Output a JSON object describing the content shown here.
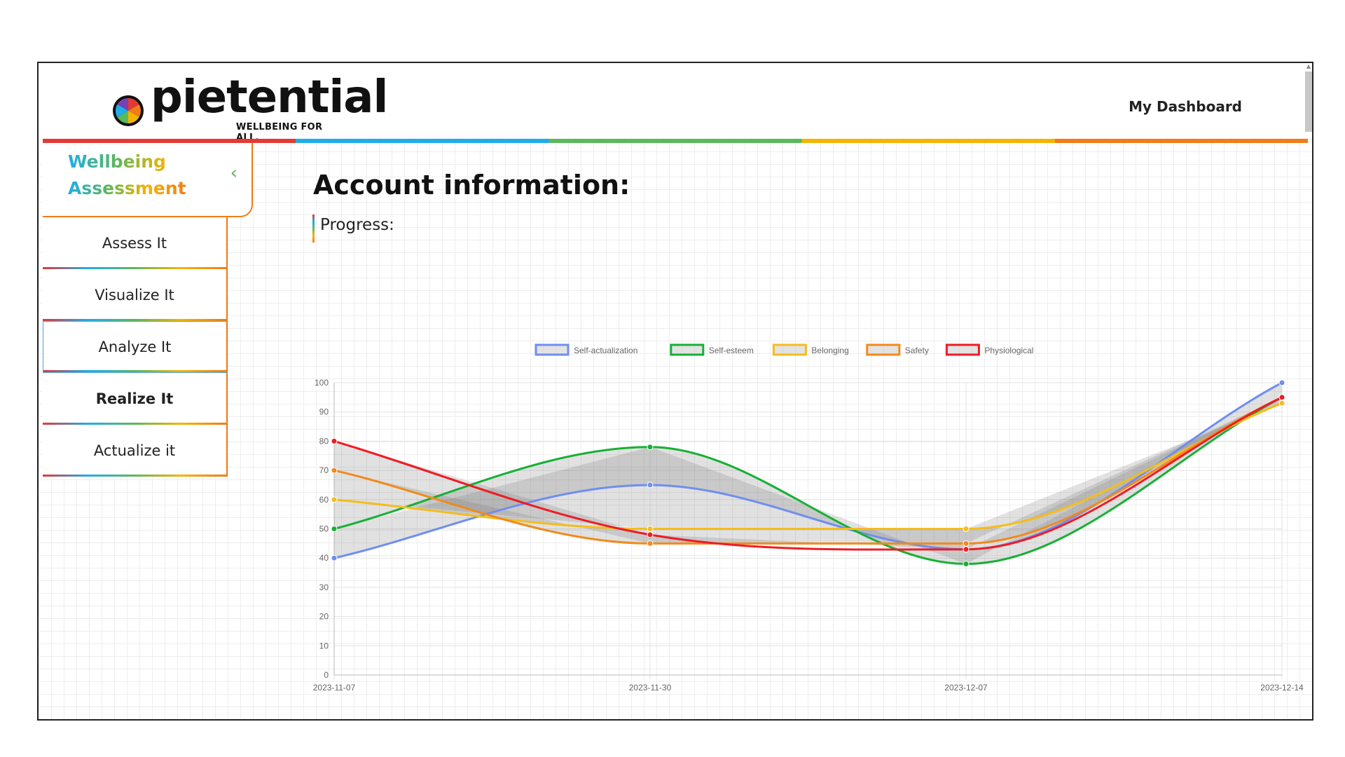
{
  "header": {
    "logo_text": "pietential",
    "tagline": "WELLBEING FOR ALL.",
    "dashboard_link": "My Dashboard"
  },
  "sidebar": {
    "title_line1": "Wellbeing",
    "title_line2": "Assessment",
    "collapse_icon": "chevron-left-icon",
    "items": [
      {
        "label": "Assess It"
      },
      {
        "label": "Visualize It"
      },
      {
        "label": "Analyze It"
      },
      {
        "label": "Realize It"
      },
      {
        "label": "Actualize it"
      }
    ]
  },
  "main": {
    "title": "Account information:",
    "progress_label": "Progress:"
  },
  "chart_data": {
    "type": "line",
    "x": [
      "2023-11-07",
      "2023-11-30",
      "2023-12-07",
      "2023-12-14"
    ],
    "ylim": [
      0,
      100
    ],
    "yticks": [
      0,
      10,
      20,
      30,
      40,
      50,
      60,
      70,
      80,
      90,
      100
    ],
    "grid": true,
    "legend_position": "top",
    "series": [
      {
        "name": "Self-actualization",
        "color": "#6f8ef0",
        "values": [
          40,
          65,
          43,
          100
        ]
      },
      {
        "name": "Self-esteem",
        "color": "#17b035",
        "values": [
          50,
          78,
          38,
          95
        ]
      },
      {
        "name": "Belonging",
        "color": "#f4bd1c",
        "values": [
          60,
          50,
          50,
          93
        ]
      },
      {
        "name": "Safety",
        "color": "#f28a1b",
        "values": [
          70,
          45,
          45,
          95
        ]
      },
      {
        "name": "Physiological",
        "color": "#ee1c25",
        "values": [
          80,
          48,
          43,
          95
        ]
      }
    ]
  }
}
